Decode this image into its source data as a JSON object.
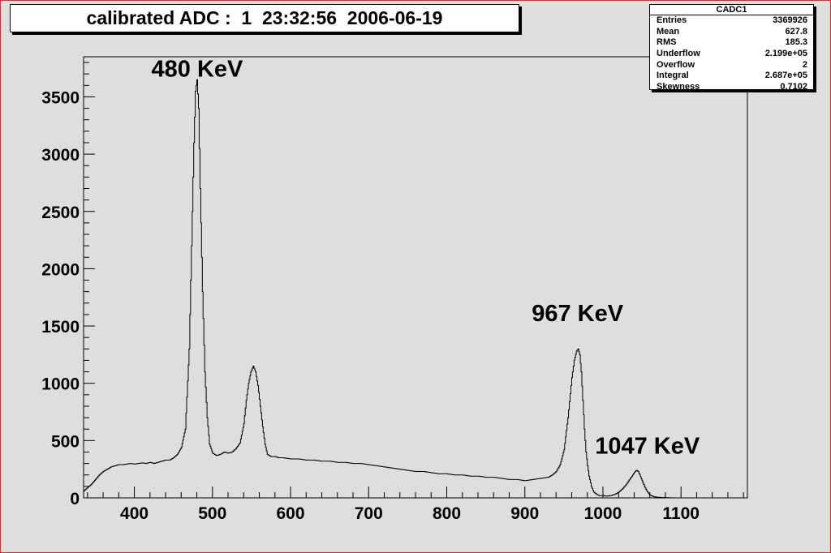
{
  "title": "calibrated ADC :  1  23:32:56  2006-06-19",
  "stats": {
    "name": "CADC1",
    "rows": [
      {
        "label": "Entries",
        "value": "3369926"
      },
      {
        "label": "Mean",
        "value": "627.8"
      },
      {
        "label": "RMS",
        "value": "185.3"
      },
      {
        "label": "Underflow",
        "value": "2.199e+05"
      },
      {
        "label": "Overflow",
        "value": "2"
      },
      {
        "label": "Integral",
        "value": "2.687e+05"
      },
      {
        "label": "Skewness",
        "value": "0.7102"
      }
    ]
  },
  "chart_data": {
    "type": "histogram",
    "xlim": [
      335,
      1185
    ],
    "ylim": [
      0,
      3850
    ],
    "xticks": [
      400,
      500,
      600,
      700,
      800,
      900,
      1000,
      1100
    ],
    "yticks": [
      0,
      500,
      1000,
      1500,
      2000,
      2500,
      3000,
      3500
    ],
    "grid": false,
    "x": [
      335,
      340,
      345,
      350,
      355,
      360,
      365,
      370,
      375,
      380,
      385,
      390,
      395,
      400,
      405,
      410,
      415,
      420,
      425,
      430,
      435,
      440,
      445,
      450,
      455,
      460,
      465,
      470,
      473,
      476,
      478,
      480,
      482,
      484,
      487,
      490,
      493,
      496,
      500,
      505,
      510,
      515,
      520,
      525,
      530,
      535,
      540,
      543,
      546,
      549,
      552,
      555,
      558,
      561,
      564,
      567,
      570,
      575,
      580,
      585,
      590,
      600,
      610,
      620,
      630,
      640,
      650,
      660,
      670,
      680,
      690,
      700,
      710,
      720,
      730,
      740,
      750,
      760,
      770,
      780,
      790,
      800,
      810,
      820,
      830,
      840,
      850,
      860,
      870,
      880,
      890,
      900,
      910,
      920,
      930,
      935,
      940,
      945,
      950,
      955,
      960,
      963,
      966,
      968,
      970,
      972,
      974,
      976,
      978,
      980,
      982,
      985,
      988,
      992,
      995,
      1000,
      1005,
      1010,
      1015,
      1020,
      1025,
      1030,
      1035,
      1038,
      1041,
      1043,
      1045,
      1047,
      1050,
      1053,
      1056,
      1060,
      1065,
      1070,
      1080,
      1090,
      1100,
      1120,
      1150,
      1185
    ],
    "y": [
      60,
      90,
      120,
      160,
      200,
      230,
      250,
      270,
      280,
      290,
      290,
      295,
      300,
      295,
      300,
      305,
      300,
      310,
      300,
      310,
      320,
      330,
      330,
      350,
      380,
      440,
      600,
      1300,
      2200,
      3100,
      3550,
      3650,
      3400,
      2700,
      1800,
      1100,
      700,
      470,
      390,
      370,
      380,
      400,
      390,
      400,
      430,
      480,
      650,
      850,
      1000,
      1100,
      1150,
      1100,
      980,
      800,
      620,
      470,
      380,
      360,
      360,
      350,
      350,
      340,
      340,
      330,
      330,
      320,
      320,
      310,
      310,
      300,
      300,
      290,
      280,
      270,
      260,
      250,
      240,
      230,
      230,
      220,
      210,
      210,
      200,
      200,
      190,
      190,
      180,
      180,
      170,
      160,
      160,
      150,
      160,
      170,
      180,
      200,
      230,
      290,
      420,
      700,
      1050,
      1200,
      1280,
      1300,
      1250,
      1100,
      850,
      600,
      400,
      280,
      190,
      100,
      50,
      30,
      20,
      20,
      15,
      20,
      30,
      50,
      80,
      120,
      170,
      200,
      230,
      240,
      230,
      200,
      150,
      100,
      60,
      25,
      10,
      5,
      2,
      0,
      0,
      0,
      0,
      0
    ],
    "annotations": [
      {
        "text": "480 KeV",
        "x": 480,
        "y": 3650
      },
      {
        "text": "967 KeV",
        "x": 967,
        "y": 1350
      },
      {
        "text": "1047 KeV",
        "x": 1047,
        "y": 300
      }
    ]
  }
}
